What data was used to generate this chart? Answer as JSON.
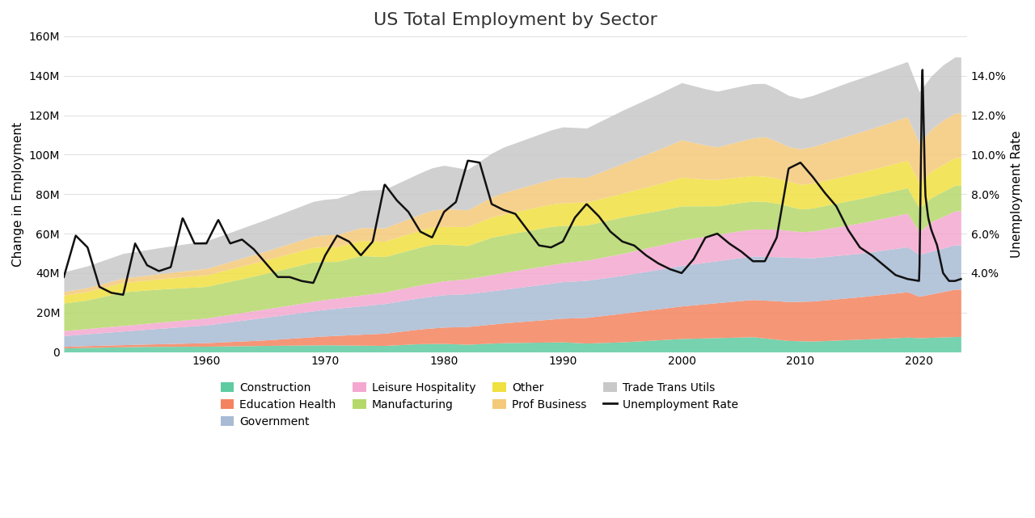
{
  "title": "US Total Employment by Sector",
  "ylabel_left": "Change in Employment",
  "ylabel_right": "Unemployment Rate",
  "ylim_left": [
    0,
    160000000
  ],
  "ylim_right": [
    0,
    0.16
  ],
  "yticks_left": [
    0,
    20000000,
    40000000,
    60000000,
    80000000,
    100000000,
    120000000,
    140000000,
    160000000
  ],
  "ytick_labels_left": [
    "0",
    "20M",
    "40M",
    "60M",
    "80M",
    "100M",
    "120M",
    "140M",
    "160M"
  ],
  "yticks_right": [
    0.04,
    0.06,
    0.08,
    0.1,
    0.12,
    0.14
  ],
  "ytick_labels_right": [
    "4.0%",
    "6.0%",
    "8.0%",
    "10.0%",
    "12.0%",
    "14.0%"
  ],
  "background_color": "#ffffff",
  "sectors_bottom_to_top": [
    "Construction",
    "Education Health",
    "Government",
    "Leisure Hospitality",
    "Manufacturing",
    "Other",
    "Prof Business",
    "Trade Trans Utils"
  ],
  "sector_colors": [
    "#5ecba1",
    "#f4845f",
    "#a8bbd4",
    "#f4a8d0",
    "#b5d86b",
    "#f0e040",
    "#f5c97a",
    "#c8c8c8"
  ],
  "unemp_color": "#111111",
  "unemp_linewidth": 1.8,
  "title_fontsize": 16,
  "axis_label_fontsize": 11,
  "tick_fontsize": 10,
  "legend_fontsize": 10,
  "xlim": [
    1948,
    2024
  ],
  "xticks": [
    1960,
    1970,
    1980,
    1990,
    2000,
    2010,
    2020
  ]
}
